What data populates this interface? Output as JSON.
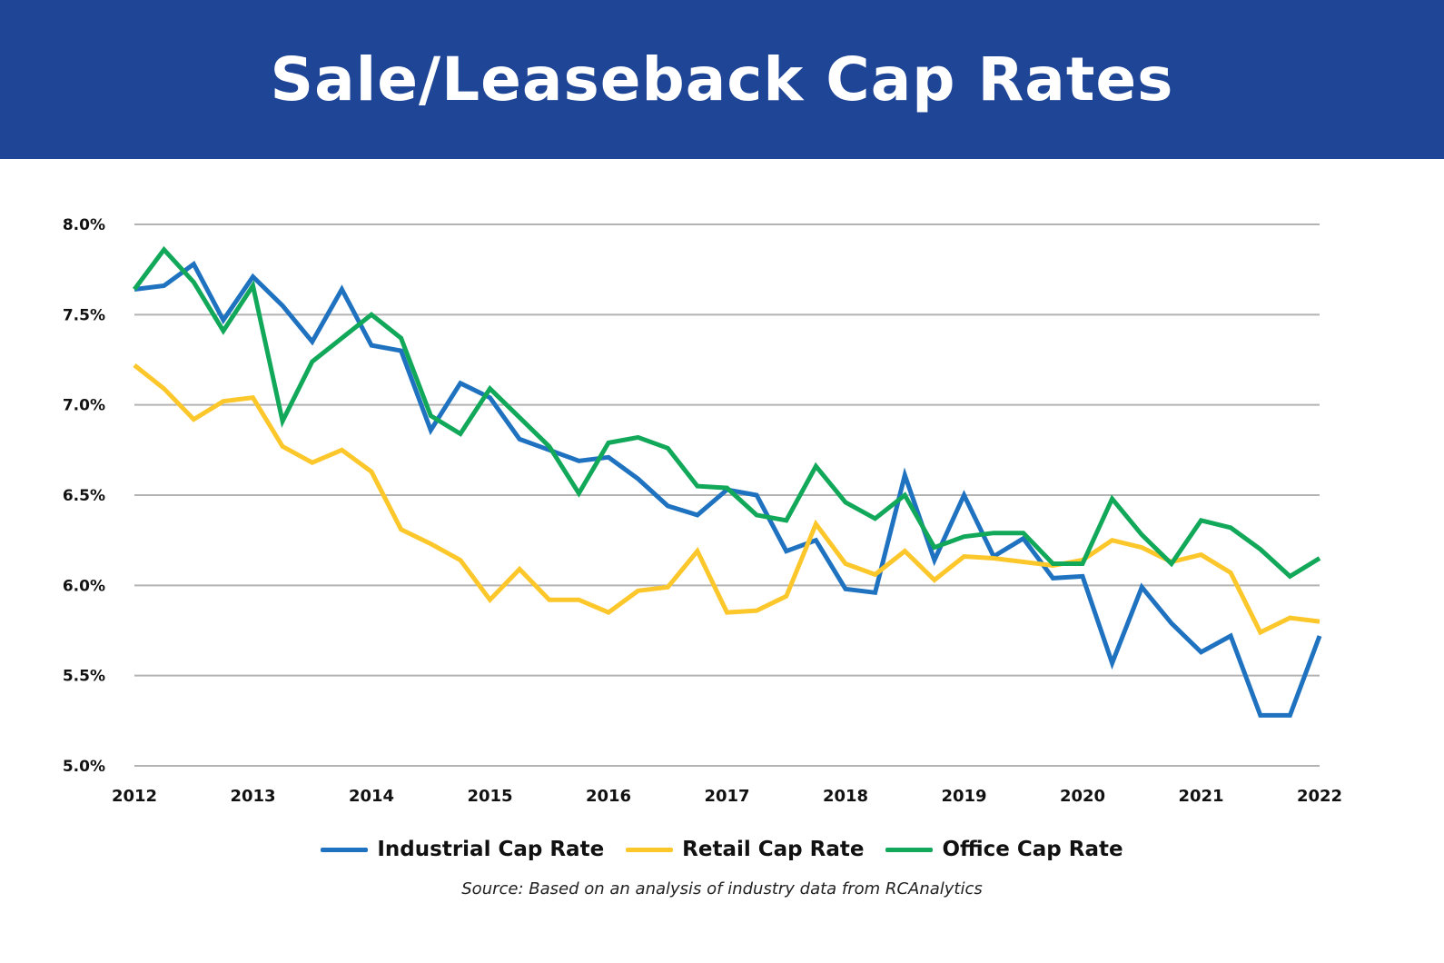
{
  "header": {
    "title": "Sale/Leaseback Cap Rates",
    "background": "#1f4597"
  },
  "chart_data": {
    "type": "line",
    "title": "Sale/Leaseback Cap Rates",
    "xlabel": "",
    "ylabel": "",
    "x_tick_labels": [
      "2012",
      "2013",
      "2014",
      "2015",
      "2016",
      "2017",
      "2018",
      "2019",
      "2020",
      "2021",
      "2022"
    ],
    "y_tick_labels": [
      "5.0%",
      "5.5%",
      "6.0%",
      "6.5%",
      "7.0%",
      "7.5%",
      "8.0%"
    ],
    "ylim": [
      5.0,
      8.0
    ],
    "xlim": [
      2012,
      2022
    ],
    "x_step": "quarterly",
    "grid": "horizontal",
    "legend_position": "bottom",
    "series": [
      {
        "name": "Industrial Cap Rate",
        "color": "#1f72bf",
        "values": [
          7.64,
          7.66,
          7.78,
          7.47,
          7.71,
          7.55,
          7.35,
          7.64,
          7.33,
          7.3,
          6.86,
          7.12,
          7.04,
          6.81,
          6.75,
          6.69,
          6.71,
          6.59,
          6.44,
          6.39,
          6.53,
          6.5,
          6.19,
          6.25,
          5.98,
          5.96,
          6.61,
          6.14,
          6.5,
          6.16,
          6.26,
          6.04,
          6.05,
          5.57,
          5.99,
          5.79,
          5.63,
          5.72,
          5.28,
          5.28,
          5.72
        ]
      },
      {
        "name": "Retail Cap Rate",
        "color": "#fcc72a",
        "values": [
          7.22,
          7.09,
          6.92,
          7.02,
          7.04,
          6.77,
          6.68,
          6.75,
          6.63,
          6.31,
          6.23,
          6.14,
          5.92,
          6.09,
          5.92,
          5.92,
          5.85,
          5.97,
          5.99,
          6.19,
          5.85,
          5.86,
          5.94,
          6.34,
          6.12,
          6.06,
          6.19,
          6.03,
          6.16,
          6.15,
          6.13,
          6.11,
          6.14,
          6.25,
          6.21,
          6.13,
          6.17,
          6.07,
          5.74,
          5.82,
          5.8
        ]
      },
      {
        "name": "Office Cap Rate",
        "color": "#12a85a",
        "values": [
          7.64,
          7.86,
          7.68,
          7.41,
          7.66,
          6.91,
          7.24,
          7.37,
          7.5,
          7.37,
          6.94,
          6.84,
          7.09,
          6.93,
          6.77,
          6.51,
          6.79,
          6.82,
          6.76,
          6.55,
          6.54,
          6.39,
          6.36,
          6.66,
          6.46,
          6.37,
          6.5,
          6.21,
          6.27,
          6.29,
          6.29,
          6.12,
          6.12,
          6.48,
          6.28,
          6.12,
          6.36,
          6.32,
          6.2,
          6.05,
          6.15
        ]
      }
    ],
    "source": "Source: Based on an analysis of industry data from RCAnalytics"
  }
}
